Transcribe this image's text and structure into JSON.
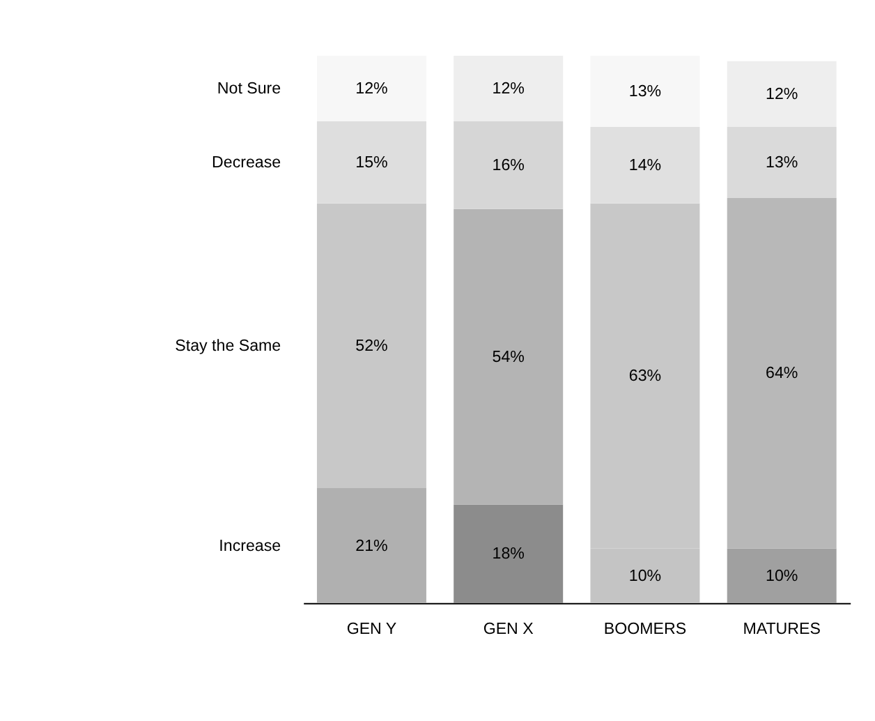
{
  "chart_data": {
    "type": "bar",
    "stacked": true,
    "categories": [
      "GEN Y",
      "GEN X",
      "BOOMERS",
      "MATURES"
    ],
    "series": [
      {
        "name": "Increase",
        "colors": [
          "#b0b0b0",
          "#8c8c8c",
          "#c4c4c4",
          "#a0a0a0"
        ],
        "values": [
          21,
          18,
          10,
          10
        ],
        "value_labels": [
          "21%",
          "18%",
          "10%",
          "10%"
        ]
      },
      {
        "name": "Stay the Same",
        "colors": [
          "#c8c8c8",
          "#b4b4b4",
          "#c8c8c8",
          "#b8b8b8"
        ],
        "values": [
          52,
          54,
          63,
          64
        ],
        "value_labels": [
          "52%",
          "54%",
          "63%",
          "64%"
        ]
      },
      {
        "name": "Decrease",
        "colors": [
          "#dedede",
          "#d6d6d6",
          "#e0e0e0",
          "#dadada"
        ],
        "values": [
          15,
          16,
          14,
          13
        ],
        "value_labels": [
          "15%",
          "16%",
          "14%",
          "13%"
        ]
      },
      {
        "name": "Not Sure",
        "colors": [
          "#f7f7f7",
          "#eeeeee",
          "#f7f7f7",
          "#eeeeee"
        ],
        "values": [
          12,
          12,
          13,
          12
        ],
        "value_labels": [
          "12%",
          "12%",
          "13%",
          "12%"
        ]
      }
    ],
    "grid": false,
    "legend": false
  }
}
